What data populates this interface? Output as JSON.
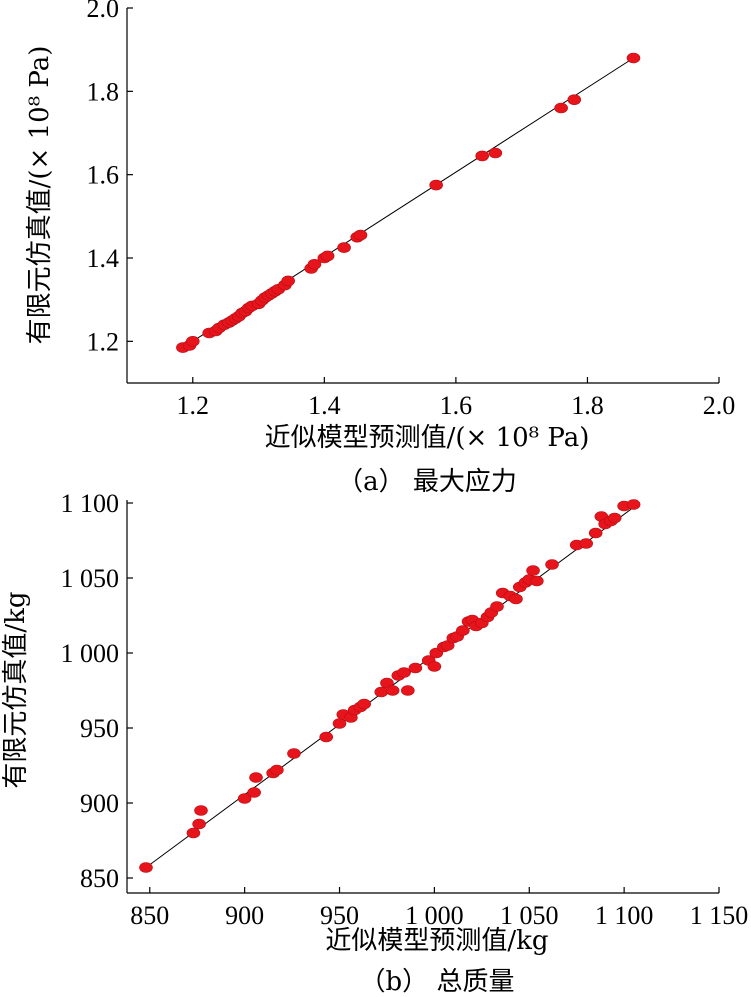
{
  "chart_data": [
    {
      "type": "scatter",
      "xlabel": "近似模型预测值/(× 10⁸ Pa)",
      "ylabel": "有限元仿真值/(× 10⁸ Pa)",
      "caption": "（a） 最大应力",
      "xlim": [
        1.1,
        2.0
      ],
      "ylim": [
        1.1,
        2.0
      ],
      "xticks": [
        1.2,
        1.4,
        1.6,
        1.8,
        2.0
      ],
      "xtick_labels": [
        "1.2",
        "1.4",
        "1.6",
        "1.8",
        "2.0"
      ],
      "yticks": [
        1.2,
        1.4,
        1.6,
        1.8,
        2.0
      ],
      "ytick_labels": [
        "1.2",
        "1.4",
        "1.6",
        "1.8",
        "2.0"
      ],
      "fit_line": [
        [
          1.185,
          1.185
        ],
        [
          1.87,
          1.88
        ]
      ],
      "points": [
        [
          1.185,
          1.185
        ],
        [
          1.195,
          1.19
        ],
        [
          1.2,
          1.2
        ],
        [
          1.225,
          1.22
        ],
        [
          1.235,
          1.225
        ],
        [
          1.24,
          1.232
        ],
        [
          1.248,
          1.24
        ],
        [
          1.255,
          1.245
        ],
        [
          1.26,
          1.25
        ],
        [
          1.265,
          1.255
        ],
        [
          1.27,
          1.26
        ],
        [
          1.275,
          1.268
        ],
        [
          1.28,
          1.272
        ],
        [
          1.285,
          1.28
        ],
        [
          1.29,
          1.285
        ],
        [
          1.3,
          1.29
        ],
        [
          1.305,
          1.298
        ],
        [
          1.31,
          1.305
        ],
        [
          1.315,
          1.31
        ],
        [
          1.32,
          1.315
        ],
        [
          1.325,
          1.32
        ],
        [
          1.33,
          1.325
        ],
        [
          1.34,
          1.335
        ],
        [
          1.345,
          1.345
        ],
        [
          1.38,
          1.375
        ],
        [
          1.385,
          1.385
        ],
        [
          1.4,
          1.4
        ],
        [
          1.405,
          1.405
        ],
        [
          1.43,
          1.425
        ],
        [
          1.45,
          1.45
        ],
        [
          1.455,
          1.455
        ],
        [
          1.57,
          1.575
        ],
        [
          1.64,
          1.645
        ],
        [
          1.66,
          1.652
        ],
        [
          1.76,
          1.76
        ],
        [
          1.78,
          1.78
        ],
        [
          1.87,
          1.88
        ]
      ]
    },
    {
      "type": "scatter",
      "xlabel": "近似模型预测值/kg",
      "ylabel": "有限元仿真值/kg",
      "caption": "（b） 总质量",
      "xlim": [
        838,
        1150
      ],
      "ylim": [
        840,
        1102
      ],
      "xticks": [
        850,
        900,
        950,
        1000,
        1050,
        1100,
        1150
      ],
      "xtick_labels": [
        "850",
        "900",
        "950",
        "1 000",
        "1 050",
        "1 100",
        "1 150"
      ],
      "yticks": [
        850,
        900,
        950,
        1000,
        1050,
        1100
      ],
      "ytick_labels": [
        "850",
        "900",
        "950",
        "1 000",
        "1 050",
        "1 100"
      ],
      "fit_line": [
        [
          848,
          857
        ],
        [
          1107,
          1099
        ]
      ],
      "points": [
        [
          848,
          857
        ],
        [
          873,
          880
        ],
        [
          876,
          886
        ],
        [
          877,
          895
        ],
        [
          900,
          903
        ],
        [
          905,
          907
        ],
        [
          906,
          917
        ],
        [
          915,
          920
        ],
        [
          917,
          922
        ],
        [
          926,
          933
        ],
        [
          943,
          944
        ],
        [
          950,
          953
        ],
        [
          952,
          959
        ],
        [
          956,
          957
        ],
        [
          958,
          962
        ],
        [
          961,
          964
        ],
        [
          963,
          966
        ],
        [
          972,
          974
        ],
        [
          975,
          980
        ],
        [
          978,
          975
        ],
        [
          981,
          985
        ],
        [
          984,
          987
        ],
        [
          986,
          975
        ],
        [
          990,
          990
        ],
        [
          997,
          995
        ],
        [
          1000,
          991
        ],
        [
          1001,
          1000
        ],
        [
          1005,
          1004
        ],
        [
          1007,
          1005
        ],
        [
          1010,
          1010
        ],
        [
          1012,
          1011
        ],
        [
          1015,
          1015
        ],
        [
          1018,
          1021
        ],
        [
          1020,
          1022
        ],
        [
          1022,
          1018
        ],
        [
          1025,
          1020
        ],
        [
          1028,
          1024
        ],
        [
          1030,
          1027
        ],
        [
          1033,
          1031
        ],
        [
          1036,
          1040
        ],
        [
          1040,
          1038
        ],
        [
          1043,
          1036
        ],
        [
          1045,
          1044
        ],
        [
          1048,
          1047
        ],
        [
          1050,
          1049
        ],
        [
          1052,
          1055
        ],
        [
          1054,
          1048
        ],
        [
          1062,
          1059
        ],
        [
          1075,
          1072
        ],
        [
          1080,
          1073
        ],
        [
          1085,
          1080
        ],
        [
          1088,
          1091
        ],
        [
          1090,
          1086
        ],
        [
          1093,
          1088
        ],
        [
          1095,
          1090
        ],
        [
          1100,
          1098
        ],
        [
          1105,
          1099
        ]
      ]
    }
  ],
  "colors": {
    "point": "#e8141c",
    "point_stroke": "#b50e14",
    "line": "#000000",
    "axis": "#000000"
  }
}
